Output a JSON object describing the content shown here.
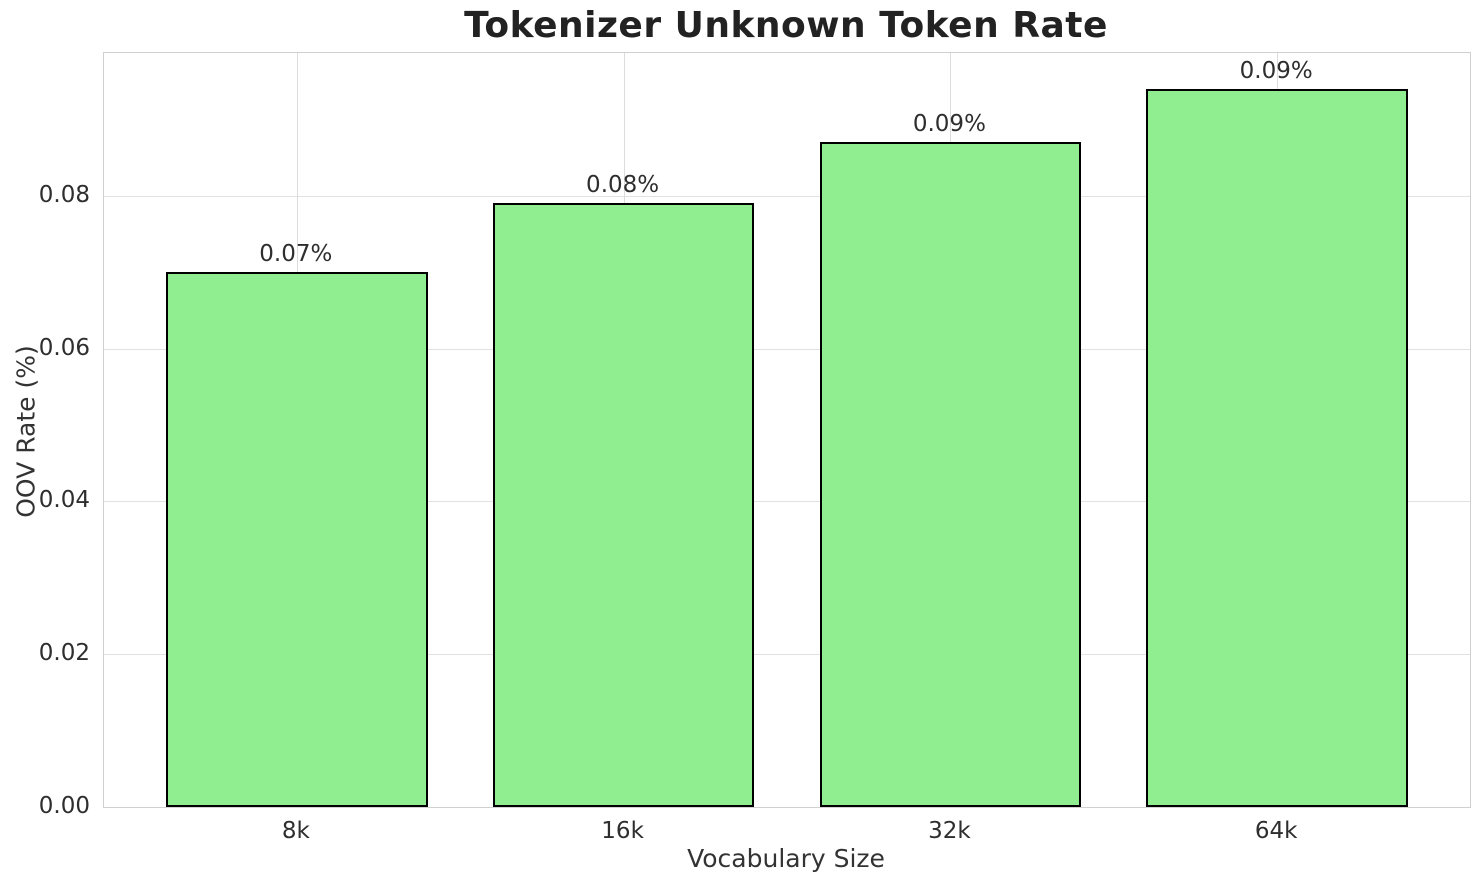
{
  "chart_data": {
    "type": "bar",
    "title": "Tokenizer Unknown Token Rate",
    "xlabel": "Vocabulary Size",
    "ylabel": "OOV Rate (%)",
    "categories": [
      "8k",
      "16k",
      "32k",
      "64k"
    ],
    "values": [
      0.07,
      0.079,
      0.087,
      0.094
    ],
    "bar_labels": [
      "0.07%",
      "0.08%",
      "0.09%",
      "0.09%"
    ],
    "x_positions": [
      0,
      1,
      2,
      3
    ],
    "bar_width": 0.8,
    "xlim": [
      -0.59,
      3.59
    ],
    "ylim": [
      0,
      0.0987
    ],
    "yticks": [
      {
        "value": 0.0,
        "label": "0.00"
      },
      {
        "value": 0.02,
        "label": "0.02"
      },
      {
        "value": 0.04,
        "label": "0.04"
      },
      {
        "value": 0.06,
        "label": "0.06"
      },
      {
        "value": 0.08,
        "label": "0.08"
      }
    ],
    "grid": true,
    "legend_position": "none",
    "colors": {
      "bar_fill": "#90EE90",
      "bar_edge": "#000000",
      "gridline": "#e0e0e0",
      "spine": "#d0d0d0",
      "title_text": "#222222",
      "tick_text": "#2e2e2e"
    }
  }
}
